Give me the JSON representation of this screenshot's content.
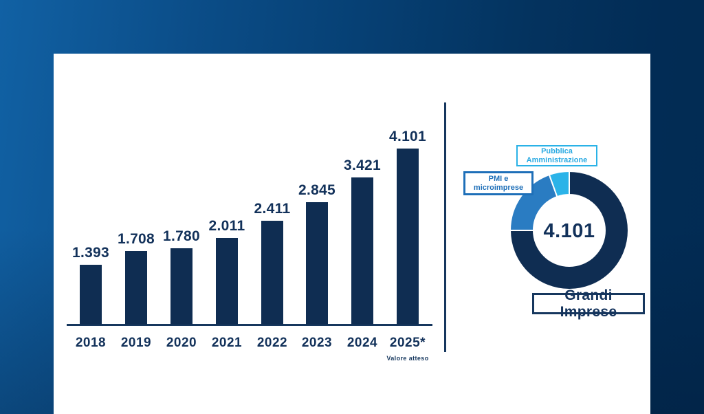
{
  "chart_data": [
    {
      "type": "bar",
      "title": "",
      "xlabel": "",
      "ylabel": "",
      "categories": [
        "2018",
        "2019",
        "2020",
        "2021",
        "2022",
        "2023",
        "2024",
        "2025*"
      ],
      "values": [
        1393,
        1708,
        1780,
        2011,
        2411,
        2845,
        3421,
        4101
      ],
      "value_labels": [
        "1.393",
        "1.708",
        "1.780",
        "2.011",
        "2.411",
        "2.845",
        "3.421",
        "4.101"
      ],
      "footnote": "Valore atteso",
      "ylim": [
        0,
        4101
      ],
      "grid": false,
      "legend": "none",
      "bar_color": "#0f2d52"
    },
    {
      "type": "pie",
      "subtype": "donut",
      "center_label": "4.101",
      "legend": "callout-boxes",
      "segments": [
        {
          "label": "Grandi Imprese",
          "share": 0.75,
          "color": "#0f2d52"
        },
        {
          "label": "PMI e microimprese",
          "share": 0.195,
          "color": "#2a7cc2"
        },
        {
          "label": "Pubblica Amministrazione",
          "share": 0.055,
          "color": "#2bb3e8"
        }
      ]
    }
  ],
  "callouts": {
    "pubblica": {
      "line1": "Pubblica",
      "line2": "Amministrazione"
    },
    "pmi": {
      "line1": "PMI e",
      "line2": "microimprese"
    },
    "grandi": {
      "label": "Grandi Imprese"
    }
  },
  "colors": {
    "navy": "#0f2d52",
    "mid_blue": "#2a7cc2",
    "cyan": "#2bb3e8",
    "text_navy": "#12315a",
    "panel_bg": "#ffffff",
    "bg_gradient_start": "#1161a4",
    "bg_gradient_end": "#022b53"
  }
}
